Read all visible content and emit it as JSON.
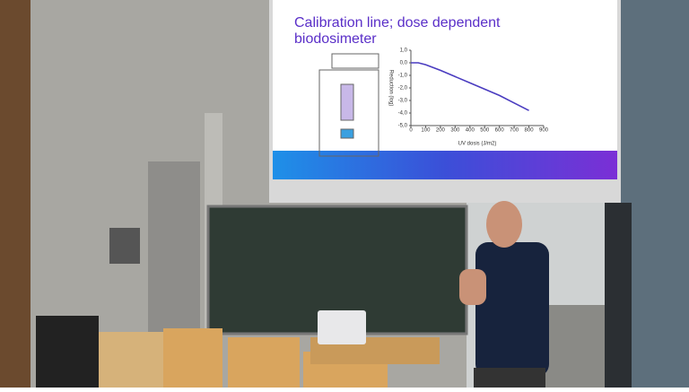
{
  "slide": {
    "title": "Calibration line; dose dependent",
    "subtitle": "biodosimeter"
  },
  "chart_data": {
    "type": "line",
    "x_label": "UV dosis (J/m2)",
    "y_label": "Reduction (log)",
    "x": [
      0,
      50,
      100,
      200,
      300,
      400,
      500,
      600,
      700,
      800
    ],
    "series": [
      {
        "name": "Reduction",
        "color": "#4a3cc0",
        "values": [
          0,
          0,
          -0.15,
          -0.6,
          -1.1,
          -1.6,
          -2.1,
          -2.6,
          -3.2,
          -3.8
        ]
      }
    ],
    "xlim": [
      0,
      900
    ],
    "ylim": [
      -5,
      1
    ],
    "xticks": [
      0,
      100,
      200,
      300,
      400,
      500,
      600,
      700,
      800,
      900
    ],
    "yticks": [
      {
        "value": 1,
        "label": "1,0"
      },
      {
        "value": 0,
        "label": "0,0"
      },
      {
        "value": -1,
        "label": "-1,0"
      },
      {
        "value": -2,
        "label": "-2,0"
      },
      {
        "value": -3,
        "label": "-3,0"
      },
      {
        "value": -4,
        "label": "-4,0"
      },
      {
        "value": -5,
        "label": "-5,0"
      }
    ]
  }
}
